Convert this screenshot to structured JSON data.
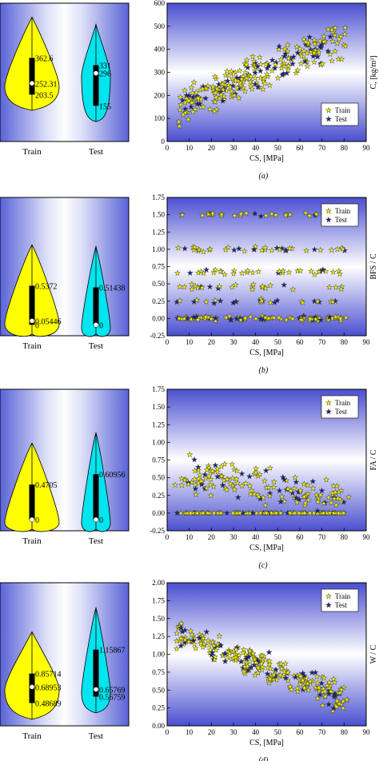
{
  "chart_data": [
    {
      "type": "violin",
      "categories": [
        "Train",
        "Test"
      ],
      "colors": {
        "train": "#ffff00",
        "test": "#00e5ee"
      },
      "train": {
        "q1": 203.5,
        "median": 252.31,
        "q3": 362.6,
        "labels": [
          "362.6",
          "252.31",
          "203.5"
        ]
      },
      "test": {
        "q1": 155,
        "median": 296,
        "q3": 331,
        "labels": [
          "331",
          "296",
          "155"
        ]
      },
      "ylim": [
        0,
        600
      ]
    },
    {
      "type": "scatter",
      "panel_label": "(a)",
      "xlabel": "CS, [MPa]",
      "ylabel": "C, [kg/m³]",
      "xlim": [
        0,
        90
      ],
      "ylim": [
        0,
        600
      ],
      "xticks": [
        "0",
        "10",
        "20",
        "30",
        "40",
        "50",
        "60",
        "70",
        "80",
        "90"
      ],
      "yticks": [
        "0",
        "100",
        "200",
        "300",
        "400",
        "500",
        "600"
      ],
      "series": [
        {
          "name": "Train",
          "color": "#f2f200"
        },
        {
          "name": "Test",
          "color": "#1a237e"
        }
      ],
      "legend": "bottom-right"
    },
    {
      "type": "violin",
      "categories": [
        "Train",
        "Test"
      ],
      "colors": {
        "train": "#ffff00",
        "test": "#00e5ee"
      },
      "train": {
        "q1": 0,
        "median": 0.05446,
        "q3": 0.5372,
        "labels": [
          "0.5372",
          "0.05446",
          "0"
        ]
      },
      "test": {
        "q1": 0,
        "median": 0,
        "q3": 0.51438,
        "labels": [
          "0.51438",
          "0"
        ]
      },
      "ylim": [
        -0.15,
        1.75
      ]
    },
    {
      "type": "scatter",
      "panel_label": "(b)",
      "xlabel": "CS, [MPa]",
      "ylabel": "BFS / C",
      "xlim": [
        0,
        90
      ],
      "ylim": [
        -0.25,
        1.75
      ],
      "xticks": [
        "0",
        "10",
        "20",
        "30",
        "40",
        "50",
        "60",
        "70",
        "80",
        "90"
      ],
      "yticks": [
        "-0.25",
        "0.00",
        "0.25",
        "0.50",
        "0.75",
        "1.00",
        "1.25",
        "1.50",
        "1.75"
      ],
      "series": [
        {
          "name": "Train",
          "color": "#f2f200"
        },
        {
          "name": "Test",
          "color": "#1a237e"
        }
      ],
      "legend": "top-right"
    },
    {
      "type": "violin",
      "categories": [
        "Train",
        "Test"
      ],
      "colors": {
        "train": "#ffff00",
        "test": "#00e5ee"
      },
      "train": {
        "q1": 0,
        "median": 0,
        "q3": 0.4705,
        "labels": [
          "0.4705",
          "0"
        ]
      },
      "test": {
        "q1": 0,
        "median": 0,
        "q3": 0.60956,
        "labels": [
          "0.60956",
          "0"
        ]
      },
      "ylim": [
        -0.15,
        1.75
      ]
    },
    {
      "type": "scatter",
      "panel_label": "(c)",
      "xlabel": "CS, [MPa]",
      "ylabel": "FA / C",
      "xlim": [
        0,
        90
      ],
      "ylim": [
        -0.25,
        1.75
      ],
      "xticks": [
        "0",
        "10",
        "20",
        "30",
        "40",
        "50",
        "60",
        "70",
        "80",
        "90"
      ],
      "yticks": [
        "-0.25",
        "0.00",
        "0.25",
        "0.50",
        "0.75",
        "1.00",
        "1.25",
        "1.50",
        "1.75"
      ],
      "series": [
        {
          "name": "Train",
          "color": "#f2f200"
        },
        {
          "name": "Test",
          "color": "#1a237e"
        }
      ],
      "legend": "top-right"
    },
    {
      "type": "violin",
      "categories": [
        "Train",
        "Test"
      ],
      "colors": {
        "train": "#ffff00",
        "test": "#00e5ee"
      },
      "train": {
        "q1": 0.48689,
        "median": 0.68953,
        "q3": 0.85714,
        "labels": [
          "0.85714",
          "0.68953",
          "0.48689"
        ]
      },
      "test": {
        "q1": 0.56759,
        "median": 0.65769,
        "q3": 1.15867,
        "labels": [
          "1.15867",
          "0.65769",
          "0.56759"
        ]
      },
      "ylim": [
        0.2,
        2.0
      ]
    },
    {
      "type": "scatter",
      "panel_label": "(d)",
      "xlabel": "CS, [MPa]",
      "ylabel": "W / C",
      "xlim": [
        0,
        90
      ],
      "ylim": [
        0,
        2.0
      ],
      "xticks": [
        "0",
        "10",
        "20",
        "30",
        "40",
        "50",
        "60",
        "70",
        "80",
        "90"
      ],
      "yticks": [
        "0.00",
        "0.25",
        "0.50",
        "0.75",
        "1.00",
        "1.25",
        "1.50",
        "1.75",
        "2.00"
      ],
      "series": [
        {
          "name": "Train",
          "color": "#f2f200"
        },
        {
          "name": "Test",
          "color": "#1a237e"
        }
      ],
      "legend": "top-right"
    }
  ]
}
